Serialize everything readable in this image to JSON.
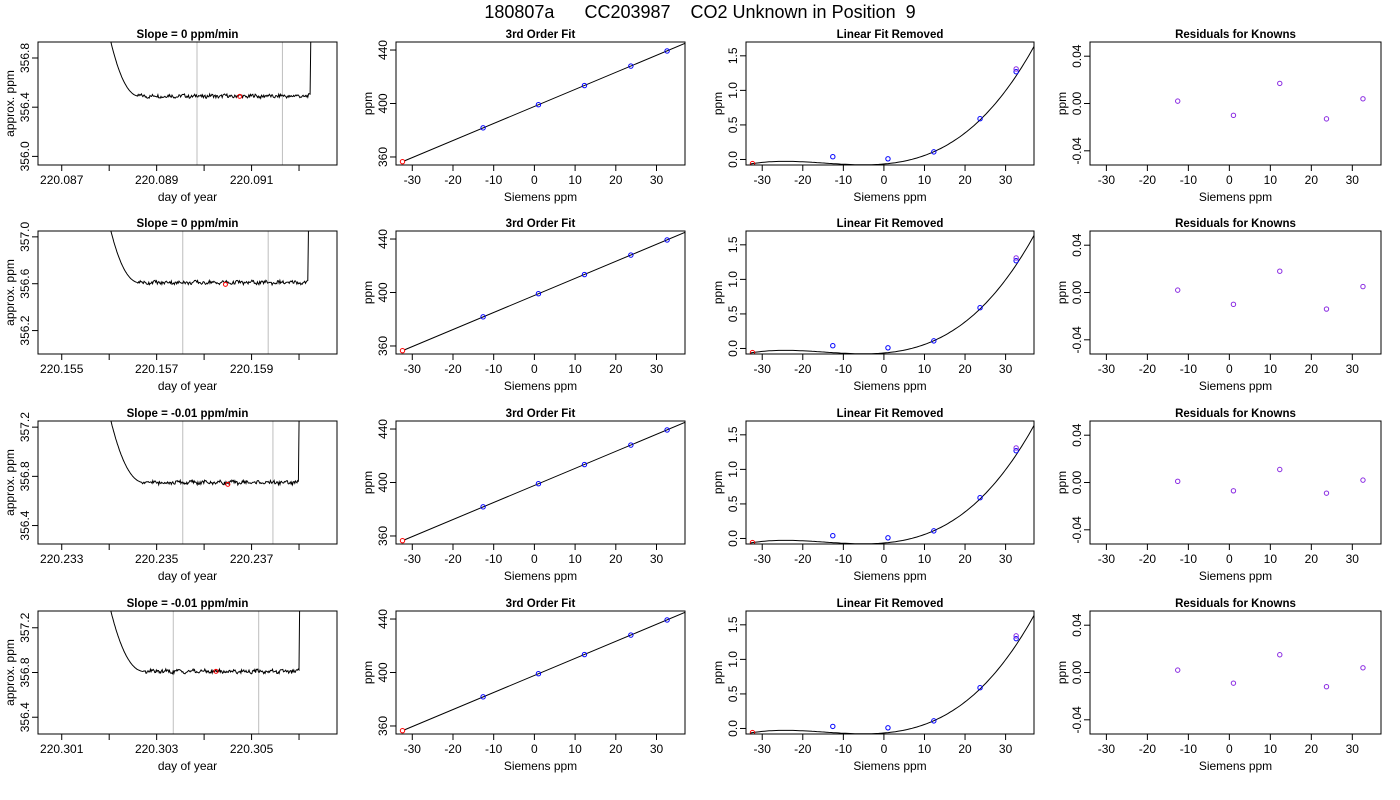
{
  "title": "180807a      CC203987    CO2 Unknown in Position  9",
  "colors": {
    "trace": "#000000",
    "vline": "#bebebe",
    "point_red": "#ff0000",
    "point_blue": "#0000ff",
    "point_purple": "#8a2be2"
  },
  "chart_data": [
    {
      "type": "line",
      "title": "Slope =  0  ppm/min",
      "xlabel": "day of year",
      "ylabel": "approx. ppm",
      "xlim": [
        220.0865,
        220.0928
      ],
      "ylim": [
        355.93,
        356.93
      ],
      "xticks": [
        220.087,
        220.089,
        220.091
      ],
      "xtick_labels": [
        "220.087",
        "220.089",
        "220.091"
      ],
      "yticks": [
        356.0,
        356.4,
        356.8
      ],
      "ytick_labels": [
        "356.0",
        "356.4",
        "356.8"
      ],
      "minor_xticks": [
        220.088,
        220.09,
        220.092
      ],
      "trace": {
        "x_start": 220.088,
        "x_end": 220.0923,
        "level": 356.49,
        "top": 356.93,
        "settle": 220.0886,
        "rise": 220.09225
      },
      "vlines": [
        220.08985,
        220.09165
      ],
      "marker": {
        "x": 220.09075,
        "y": 356.488
      }
    },
    {
      "type": "line",
      "grid": false,
      "title": "3rd Order Fit",
      "xlabel": "Siemens ppm",
      "ylabel": "ppm",
      "xlim": [
        -34,
        37
      ],
      "ylim": [
        354,
        446
      ],
      "xticks": [
        -30,
        -20,
        -10,
        0,
        10,
        20,
        30
      ],
      "xtick_labels": [
        "-30",
        "-20",
        "-10",
        "0",
        "10",
        "20",
        "30"
      ],
      "yticks": [
        360,
        400,
        440
      ],
      "ytick_labels": [
        "360",
        "400",
        "440"
      ],
      "curve": {
        "x": [
          -32,
          37
        ],
        "y": [
          357.0,
          445.0
        ]
      },
      "points": [
        {
          "x": -32.4,
          "y": 356.5,
          "c": "red"
        },
        {
          "x": -12.6,
          "y": 381.8,
          "c": "blue"
        },
        {
          "x": 1.0,
          "y": 399.1,
          "c": "blue"
        },
        {
          "x": 12.3,
          "y": 413.4,
          "c": "blue"
        },
        {
          "x": 23.7,
          "y": 428.0,
          "c": "blue"
        },
        {
          "x": 32.6,
          "y": 439.3,
          "c": "blue"
        }
      ]
    },
    {
      "type": "line",
      "title": "Linear Fit Removed",
      "xlabel": "Siemens ppm",
      "ylabel": "ppm",
      "xlim": [
        -34,
        37
      ],
      "ylim": [
        -0.08,
        1.7
      ],
      "xticks": [
        -30,
        -20,
        -10,
        0,
        10,
        20,
        30
      ],
      "xtick_labels": [
        "-30",
        "-20",
        "-10",
        "0",
        "10",
        "20",
        "30"
      ],
      "yticks": [
        0.0,
        0.5,
        1.0,
        1.5
      ],
      "ytick_labels": [
        "0.0",
        "0.5",
        "1.0",
        "1.5"
      ],
      "cubic": {
        "c": 0.2,
        "x0": -32.4,
        "x1": 1.0,
        "x2": 32.6
      },
      "points": [
        {
          "x": -32.4,
          "y": -0.06,
          "c": "red"
        },
        {
          "x": -12.6,
          "y": 0.04,
          "c": "blue"
        },
        {
          "x": 1.0,
          "y": 0.01,
          "c": "blue"
        },
        {
          "x": 12.3,
          "y": 0.11,
          "c": "blue"
        },
        {
          "x": 23.7,
          "y": 0.59,
          "c": "blue"
        },
        {
          "x": 32.6,
          "y": 1.27,
          "c": "blue"
        },
        {
          "x": 32.6,
          "y": 1.31,
          "c": "purple"
        }
      ]
    },
    {
      "type": "scatter",
      "title": "Residuals for Knowns",
      "xlabel": "Siemens ppm",
      "ylabel": "ppm",
      "xlim": [
        -34,
        37
      ],
      "ylim": [
        -0.052,
        0.052
      ],
      "xticks": [
        -30,
        -20,
        -10,
        0,
        10,
        20,
        30
      ],
      "xtick_labels": [
        "-30",
        "-20",
        "-10",
        "0",
        "10",
        "20",
        "30"
      ],
      "yticks": [
        -0.04,
        0.0,
        0.04
      ],
      "ytick_labels": [
        "-0.04",
        "0.00",
        "0.04"
      ],
      "points": [
        {
          "x": -12.6,
          "y": 0.002
        },
        {
          "x": 1.0,
          "y": -0.01
        },
        {
          "x": 12.3,
          "y": 0.017
        },
        {
          "x": 23.7,
          "y": -0.013
        },
        {
          "x": 32.6,
          "y": 0.004
        }
      ]
    },
    {
      "type": "line",
      "title": "Slope =  0  ppm/min",
      "xlabel": "day of year",
      "ylabel": "approx. ppm",
      "xlim": [
        220.1545,
        220.1608
      ],
      "ylim": [
        356.0,
        357.05
      ],
      "xticks": [
        220.155,
        220.157,
        220.159
      ],
      "xtick_labels": [
        "220.155",
        "220.157",
        "220.159"
      ],
      "yticks": [
        356.2,
        356.6,
        357.0
      ],
      "ytick_labels": [
        "356.2",
        "356.6",
        "357.0"
      ],
      "minor_xticks": [
        220.156,
        220.158,
        220.16
      ],
      "trace": {
        "x_start": 220.156,
        "x_end": 220.16025,
        "level": 356.61,
        "top": 357.05,
        "settle": 220.1566,
        "rise": 220.1602
      },
      "vlines": [
        220.15755,
        220.15935
      ],
      "marker": {
        "x": 220.15845,
        "y": 356.594
      }
    },
    {
      "type": "line",
      "title": "3rd Order Fit",
      "xlabel": "Siemens ppm",
      "ylabel": "ppm",
      "xlim": [
        -34,
        37
      ],
      "ylim": [
        354,
        446
      ],
      "xticks": [
        -30,
        -20,
        -10,
        0,
        10,
        20,
        30
      ],
      "xtick_labels": [
        "-30",
        "-20",
        "-10",
        "0",
        "10",
        "20",
        "30"
      ],
      "yticks": [
        360,
        400,
        440
      ],
      "ytick_labels": [
        "360",
        "400",
        "440"
      ],
      "curve": {
        "x": [
          -32,
          37
        ],
        "y": [
          357.0,
          445.0
        ]
      },
      "points": [
        {
          "x": -32.4,
          "y": 356.5,
          "c": "red"
        },
        {
          "x": -12.6,
          "y": 381.8,
          "c": "blue"
        },
        {
          "x": 1.0,
          "y": 399.1,
          "c": "blue"
        },
        {
          "x": 12.3,
          "y": 413.4,
          "c": "blue"
        },
        {
          "x": 23.7,
          "y": 428.0,
          "c": "blue"
        },
        {
          "x": 32.6,
          "y": 439.3,
          "c": "blue"
        }
      ]
    },
    {
      "type": "line",
      "title": "Linear Fit Removed",
      "xlabel": "Siemens ppm",
      "ylabel": "ppm",
      "xlim": [
        -34,
        37
      ],
      "ylim": [
        -0.08,
        1.7
      ],
      "xticks": [
        -30,
        -20,
        -10,
        0,
        10,
        20,
        30
      ],
      "xtick_labels": [
        "-30",
        "-20",
        "-10",
        "0",
        "10",
        "20",
        "30"
      ],
      "yticks": [
        0.0,
        0.5,
        1.0,
        1.5
      ],
      "ytick_labels": [
        "0.0",
        "0.5",
        "1.0",
        "1.5"
      ],
      "cubic": {
        "c": 0.2,
        "x0": -32.4,
        "x1": 1.0,
        "x2": 32.6
      },
      "points": [
        {
          "x": -32.4,
          "y": -0.06,
          "c": "red"
        },
        {
          "x": -12.6,
          "y": 0.04,
          "c": "blue"
        },
        {
          "x": 1.0,
          "y": 0.01,
          "c": "blue"
        },
        {
          "x": 12.3,
          "y": 0.11,
          "c": "blue"
        },
        {
          "x": 23.7,
          "y": 0.59,
          "c": "blue"
        },
        {
          "x": 32.6,
          "y": 1.27,
          "c": "blue"
        },
        {
          "x": 32.6,
          "y": 1.31,
          "c": "purple"
        }
      ]
    },
    {
      "type": "scatter",
      "title": "Residuals for Knowns",
      "xlabel": "Siemens ppm",
      "ylabel": "ppm",
      "xlim": [
        -34,
        37
      ],
      "ylim": [
        -0.052,
        0.052
      ],
      "xticks": [
        -30,
        -20,
        -10,
        0,
        10,
        20,
        30
      ],
      "xtick_labels": [
        "-30",
        "-20",
        "-10",
        "0",
        "10",
        "20",
        "30"
      ],
      "yticks": [
        -0.04,
        0.0,
        0.04
      ],
      "ytick_labels": [
        "-0.04",
        "0.00",
        "0.04"
      ],
      "points": [
        {
          "x": -12.6,
          "y": 0.002
        },
        {
          "x": 1.0,
          "y": -0.01
        },
        {
          "x": 12.3,
          "y": 0.018
        },
        {
          "x": 23.7,
          "y": -0.014
        },
        {
          "x": 32.6,
          "y": 0.005
        }
      ]
    },
    {
      "type": "line",
      "title": "Slope =  -0.01  ppm/min",
      "xlabel": "day of year",
      "ylabel": "approx. ppm",
      "xlim": [
        220.2325,
        220.2388
      ],
      "ylim": [
        356.25,
        357.25
      ],
      "xticks": [
        220.233,
        220.235,
        220.237
      ],
      "xtick_labels": [
        "220.233",
        "220.235",
        "220.237"
      ],
      "yticks": [
        356.4,
        356.8,
        357.2
      ],
      "ytick_labels": [
        "356.4",
        "356.8",
        "357.2"
      ],
      "minor_xticks": [
        220.234,
        220.236,
        220.238
      ],
      "trace": {
        "x_start": 220.234,
        "x_end": 220.23805,
        "level": 356.75,
        "top": 357.25,
        "settle": 220.2347,
        "rise": 220.238
      },
      "vlines": [
        220.23555,
        220.23745
      ],
      "marker": {
        "x": 220.2365,
        "y": 356.735
      }
    },
    {
      "type": "line",
      "title": "3rd Order Fit",
      "xlabel": "Siemens ppm",
      "ylabel": "ppm",
      "xlim": [
        -34,
        37
      ],
      "ylim": [
        354,
        446
      ],
      "xticks": [
        -30,
        -20,
        -10,
        0,
        10,
        20,
        30
      ],
      "xtick_labels": [
        "-30",
        "-20",
        "-10",
        "0",
        "10",
        "20",
        "30"
      ],
      "yticks": [
        360,
        400,
        440
      ],
      "ytick_labels": [
        "360",
        "400",
        "440"
      ],
      "curve": {
        "x": [
          -32,
          37
        ],
        "y": [
          357.0,
          445.0
        ]
      },
      "points": [
        {
          "x": -32.4,
          "y": 356.5,
          "c": "red"
        },
        {
          "x": -12.6,
          "y": 381.8,
          "c": "blue"
        },
        {
          "x": 1.0,
          "y": 399.1,
          "c": "blue"
        },
        {
          "x": 12.3,
          "y": 413.4,
          "c": "blue"
        },
        {
          "x": 23.7,
          "y": 428.0,
          "c": "blue"
        },
        {
          "x": 32.6,
          "y": 439.3,
          "c": "blue"
        }
      ]
    },
    {
      "type": "line",
      "title": "Linear Fit Removed",
      "xlabel": "Siemens ppm",
      "ylabel": "ppm",
      "xlim": [
        -34,
        37
      ],
      "ylim": [
        -0.08,
        1.7
      ],
      "xticks": [
        -30,
        -20,
        -10,
        0,
        10,
        20,
        30
      ],
      "xtick_labels": [
        "-30",
        "-20",
        "-10",
        "0",
        "10",
        "20",
        "30"
      ],
      "yticks": [
        0.0,
        0.5,
        1.0,
        1.5
      ],
      "ytick_labels": [
        "0.0",
        "0.5",
        "1.0",
        "1.5"
      ],
      "cubic": {
        "c": 0.2,
        "x0": -32.4,
        "x1": 1.0,
        "x2": 32.6
      },
      "points": [
        {
          "x": -32.4,
          "y": -0.06,
          "c": "red"
        },
        {
          "x": -12.6,
          "y": 0.04,
          "c": "blue"
        },
        {
          "x": 1.0,
          "y": 0.01,
          "c": "blue"
        },
        {
          "x": 12.3,
          "y": 0.11,
          "c": "blue"
        },
        {
          "x": 23.7,
          "y": 0.59,
          "c": "blue"
        },
        {
          "x": 32.6,
          "y": 1.27,
          "c": "blue"
        },
        {
          "x": 32.6,
          "y": 1.31,
          "c": "purple"
        }
      ]
    },
    {
      "type": "scatter",
      "title": "Residuals for Knowns",
      "xlabel": "Siemens ppm",
      "ylabel": "ppm",
      "xlim": [
        -34,
        37
      ],
      "ylim": [
        -0.052,
        0.052
      ],
      "xticks": [
        -30,
        -20,
        -10,
        0,
        10,
        20,
        30
      ],
      "xtick_labels": [
        "-30",
        "-20",
        "-10",
        "0",
        "10",
        "20",
        "30"
      ],
      "yticks": [
        -0.04,
        0.0,
        0.04
      ],
      "ytick_labels": [
        "-0.04",
        "0.00",
        "0.04"
      ],
      "points": [
        {
          "x": -12.6,
          "y": 0.001
        },
        {
          "x": 1.0,
          "y": -0.007
        },
        {
          "x": 12.3,
          "y": 0.011
        },
        {
          "x": 23.7,
          "y": -0.009
        },
        {
          "x": 32.6,
          "y": 0.002
        }
      ]
    },
    {
      "type": "line",
      "title": "Slope =  -0.01  ppm/min",
      "xlabel": "day of year",
      "ylabel": "approx. ppm",
      "xlim": [
        220.3005,
        220.3068
      ],
      "ylim": [
        356.25,
        357.35
      ],
      "xticks": [
        220.301,
        220.303,
        220.305
      ],
      "xtick_labels": [
        "220.301",
        "220.303",
        "220.305"
      ],
      "yticks": [
        356.4,
        356.8,
        357.2
      ],
      "ytick_labels": [
        "356.4",
        "356.8",
        "357.2"
      ],
      "minor_xticks": [
        220.302,
        220.304,
        220.306
      ],
      "trace": {
        "x_start": 220.302,
        "x_end": 220.30603,
        "level": 356.81,
        "top": 357.35,
        "settle": 220.3027,
        "rise": 220.306
      },
      "vlines": [
        220.30335,
        220.30515
      ],
      "marker": {
        "x": 220.30425,
        "y": 356.81
      }
    },
    {
      "type": "line",
      "title": "3rd Order Fit",
      "xlabel": "Siemens ppm",
      "ylabel": "ppm",
      "xlim": [
        -34,
        37
      ],
      "ylim": [
        354,
        446
      ],
      "xticks": [
        -30,
        -20,
        -10,
        0,
        10,
        20,
        30
      ],
      "xtick_labels": [
        "-30",
        "-20",
        "-10",
        "0",
        "10",
        "20",
        "30"
      ],
      "yticks": [
        360,
        400,
        440
      ],
      "ytick_labels": [
        "360",
        "400",
        "440"
      ],
      "curve": {
        "x": [
          -32,
          37
        ],
        "y": [
          357.0,
          445.0
        ]
      },
      "points": [
        {
          "x": -32.4,
          "y": 356.5,
          "c": "red"
        },
        {
          "x": -12.6,
          "y": 381.8,
          "c": "blue"
        },
        {
          "x": 1.0,
          "y": 399.1,
          "c": "blue"
        },
        {
          "x": 12.3,
          "y": 413.4,
          "c": "blue"
        },
        {
          "x": 23.7,
          "y": 428.0,
          "c": "blue"
        },
        {
          "x": 32.6,
          "y": 439.3,
          "c": "blue"
        }
      ]
    },
    {
      "type": "line",
      "title": "Linear Fit Removed",
      "xlabel": "Siemens ppm",
      "ylabel": "ppm",
      "xlim": [
        -34,
        37
      ],
      "ylim": [
        -0.08,
        1.7
      ],
      "xticks": [
        -30,
        -20,
        -10,
        0,
        10,
        20,
        30
      ],
      "xtick_labels": [
        "-30",
        "-20",
        "-10",
        "0",
        "10",
        "20",
        "30"
      ],
      "yticks": [
        0.0,
        0.5,
        1.0,
        1.5
      ],
      "ytick_labels": [
        "0.0",
        "0.5",
        "1.0",
        "1.5"
      ],
      "cubic": {
        "c": 0.2,
        "x0": -32.4,
        "x1": 1.0,
        "x2": 32.6
      },
      "points": [
        {
          "x": -32.4,
          "y": -0.06,
          "c": "red"
        },
        {
          "x": -12.6,
          "y": 0.03,
          "c": "blue"
        },
        {
          "x": 1.0,
          "y": 0.01,
          "c": "blue"
        },
        {
          "x": 12.3,
          "y": 0.11,
          "c": "blue"
        },
        {
          "x": 23.7,
          "y": 0.59,
          "c": "blue"
        },
        {
          "x": 32.6,
          "y": 1.3,
          "c": "blue"
        },
        {
          "x": 32.6,
          "y": 1.34,
          "c": "purple"
        }
      ]
    },
    {
      "type": "scatter",
      "title": "Residuals for Knowns",
      "xlabel": "Siemens ppm",
      "ylabel": "ppm",
      "xlim": [
        -34,
        37
      ],
      "ylim": [
        -0.052,
        0.052
      ],
      "xticks": [
        -30,
        -20,
        -10,
        0,
        10,
        20,
        30
      ],
      "xtick_labels": [
        "-30",
        "-20",
        "-10",
        "0",
        "10",
        "20",
        "30"
      ],
      "yticks": [
        -0.04,
        0.0,
        0.04
      ],
      "ytick_labels": [
        "-0.04",
        "0.00",
        "0.04"
      ],
      "points": [
        {
          "x": -12.6,
          "y": 0.002
        },
        {
          "x": 1.0,
          "y": -0.009
        },
        {
          "x": 12.3,
          "y": 0.015
        },
        {
          "x": 23.7,
          "y": -0.012
        },
        {
          "x": 32.6,
          "y": 0.004
        }
      ]
    }
  ]
}
